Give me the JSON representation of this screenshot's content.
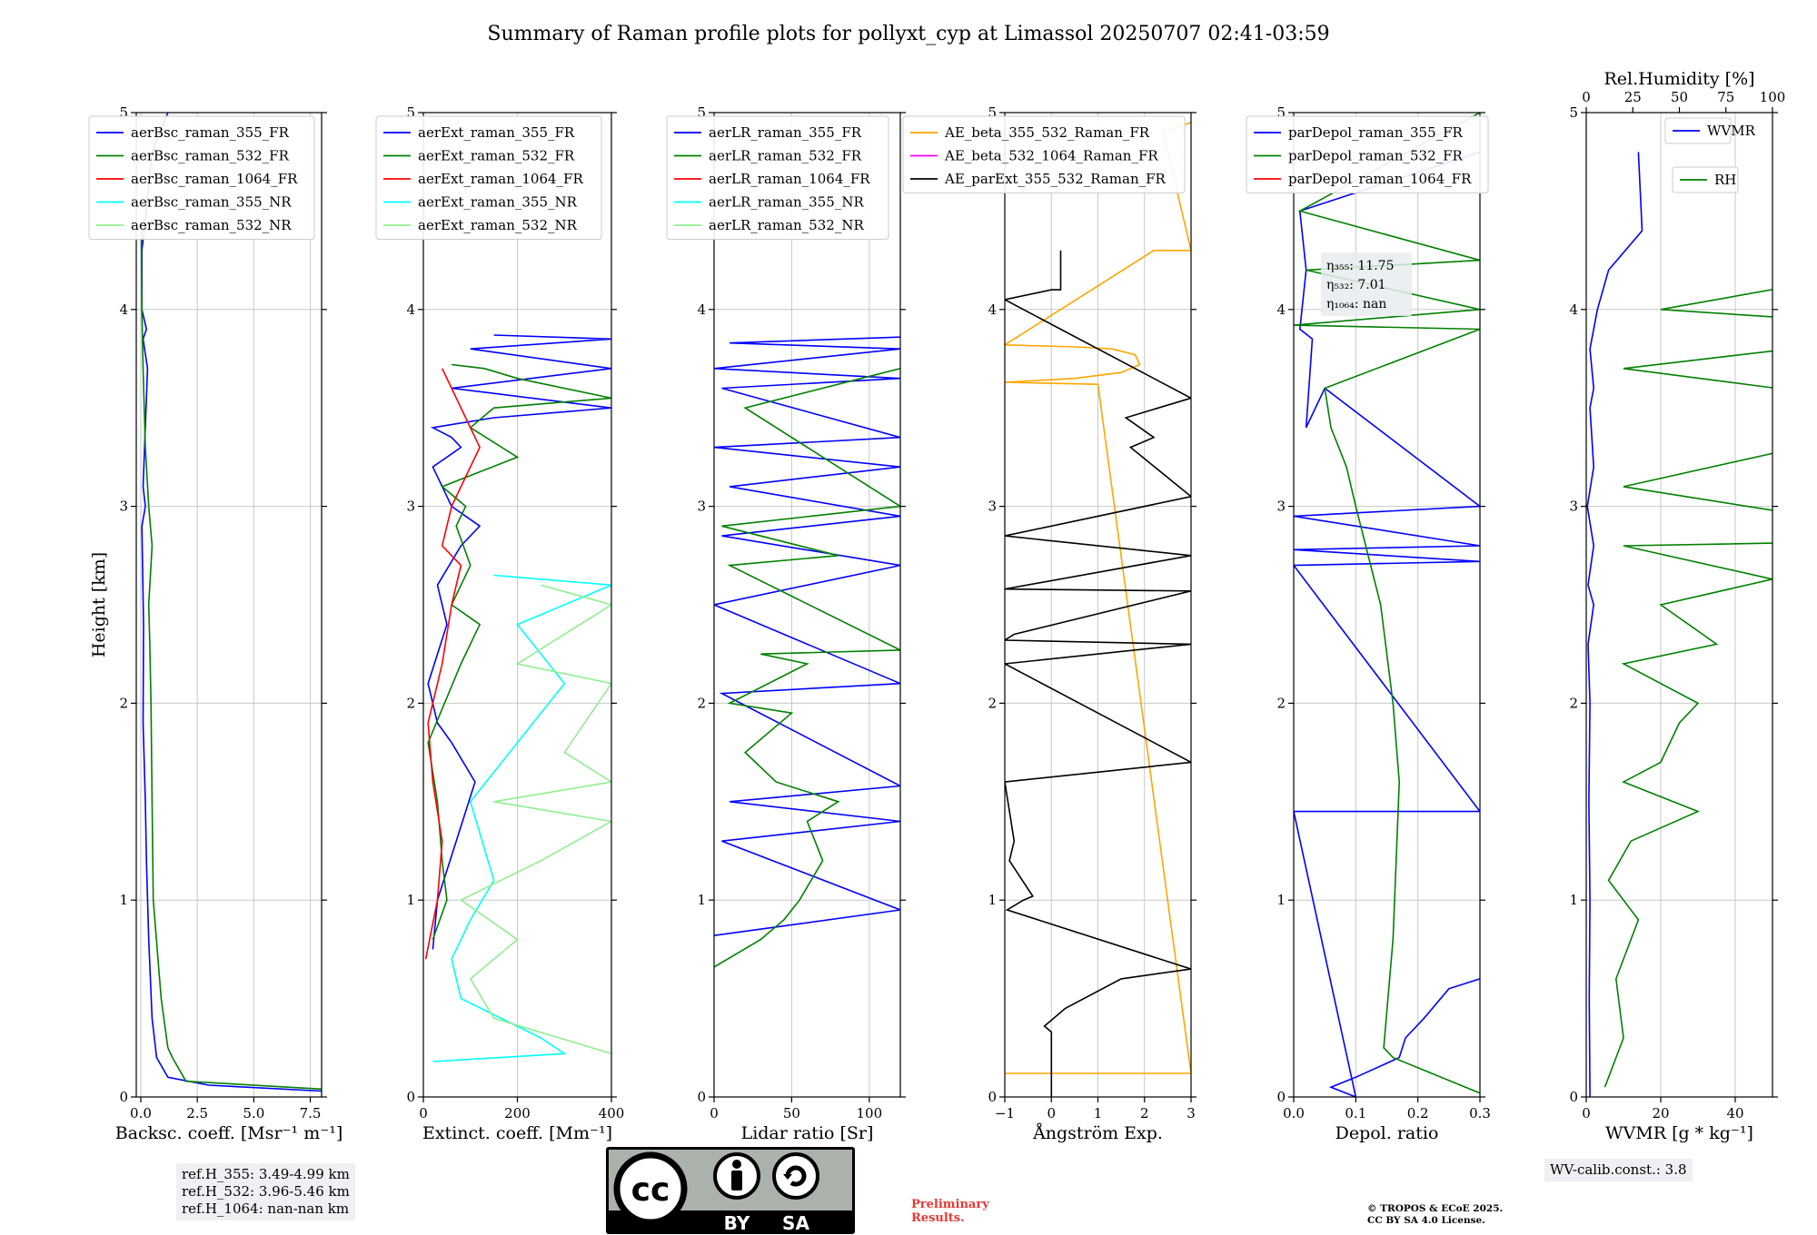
{
  "title": "Summary of Raman profile plots for pollyxt_cyp at Limassol 20250707 02:41-03:59",
  "chart_data": [
    {
      "type": "line",
      "xlabel": "Backsc. coeff. [Msr⁻¹ m⁻¹]",
      "ylabel": "Height [km]",
      "xlim": [
        -0.2,
        8
      ],
      "ylim": [
        0,
        5
      ],
      "xticks": [
        "0.0",
        "2.5",
        "5.0",
        "7.5"
      ],
      "xtick_values": [
        0,
        2.5,
        5,
        7.5
      ],
      "yticks": [
        "0",
        "1",
        "2",
        "3",
        "4",
        "5"
      ],
      "grid": true,
      "legend_position": "top-left",
      "series": [
        {
          "name": "aerBsc_raman_355_FR",
          "color": "#0000ff",
          "x": [
            8,
            3,
            1.2,
            0.7,
            0.5,
            0.35,
            0.25,
            0.2,
            0.1,
            0.12,
            0.05,
            0.2,
            0.1,
            0.3,
            0.1,
            0.25,
            0.05,
            0.05,
            0.15,
            0.5,
            1.2
          ],
          "y": [
            0.03,
            0.06,
            0.1,
            0.2,
            0.4,
            0.8,
            1.2,
            1.5,
            1.9,
            2.4,
            2.9,
            3.0,
            3.1,
            3.7,
            3.85,
            3.9,
            4.0,
            4.3,
            4.4,
            4.8,
            5.0
          ]
        },
        {
          "name": "aerBsc_raman_532_FR",
          "color": "#008000",
          "x": [
            8,
            2,
            1.4,
            1.2,
            0.9,
            0.55,
            0.5,
            0.45,
            0.4,
            0.35,
            0.5,
            0.35,
            0.2,
            0.1,
            0.05,
            0.02
          ],
          "y": [
            0.04,
            0.08,
            0.2,
            0.25,
            0.5,
            1.0,
            1.5,
            2.0,
            2.3,
            2.5,
            2.8,
            3.0,
            3.3,
            3.7,
            4.0,
            4.4
          ]
        },
        {
          "name": "aerBsc_raman_1064_FR",
          "color": "#ff0000",
          "x": [],
          "y": []
        },
        {
          "name": "aerBsc_raman_355_NR",
          "color": "#00ffff",
          "x": [],
          "y": []
        },
        {
          "name": "aerBsc_raman_532_NR",
          "color": "#90ee90",
          "x": [],
          "y": []
        }
      ]
    },
    {
      "type": "line",
      "xlabel": "Extinct. coeff. [Mm⁻¹]",
      "xlim": [
        0,
        400
      ],
      "ylim": [
        0,
        5
      ],
      "xticks": [
        "0",
        "200",
        "400"
      ],
      "xtick_values": [
        0,
        200,
        400
      ],
      "yticks": [
        "0",
        "1",
        "2",
        "3",
        "4",
        "5"
      ],
      "grid": true,
      "legend_position": "top-left",
      "series": [
        {
          "name": "aerExt_raman_355_FR",
          "color": "#0000ff",
          "x": [
            20,
            30,
            70,
            110,
            60,
            30,
            10,
            50,
            30,
            80,
            120,
            60,
            20,
            80,
            60,
            20,
            150,
            400,
            60,
            400,
            100,
            400,
            150
          ],
          "y": [
            0.75,
            1.0,
            1.3,
            1.6,
            1.8,
            1.9,
            2.1,
            2.4,
            2.6,
            2.8,
            2.9,
            3.0,
            3.2,
            3.3,
            3.35,
            3.4,
            3.45,
            3.5,
            3.6,
            3.7,
            3.8,
            3.85,
            3.87
          ]
        },
        {
          "name": "aerExt_raman_532_FR",
          "color": "#008000",
          "x": [
            20,
            50,
            40,
            30,
            10,
            80,
            120,
            60,
            100,
            70,
            90,
            40,
            200,
            100,
            150,
            400,
            200,
            130,
            60
          ],
          "y": [
            0.8,
            1.0,
            1.2,
            1.5,
            1.8,
            2.2,
            2.4,
            2.5,
            2.7,
            2.9,
            3.0,
            3.1,
            3.25,
            3.4,
            3.5,
            3.55,
            3.65,
            3.7,
            3.72
          ]
        },
        {
          "name": "aerExt_raman_1064_FR",
          "color": "#ff0000",
          "x": [
            5,
            30,
            40,
            20,
            10,
            40,
            60,
            80,
            40,
            60,
            80,
            120,
            80,
            60,
            40
          ],
          "y": [
            0.7,
            1.0,
            1.3,
            1.6,
            1.9,
            2.2,
            2.5,
            2.7,
            2.8,
            3.0,
            3.1,
            3.3,
            3.5,
            3.6,
            3.7
          ]
        },
        {
          "name": "aerExt_raman_355_NR",
          "color": "#00ffff",
          "x": [
            20,
            300,
            250,
            80,
            60,
            100,
            150,
            100,
            300,
            200,
            400,
            150
          ],
          "y": [
            0.18,
            0.22,
            0.3,
            0.5,
            0.7,
            0.9,
            1.1,
            1.5,
            2.1,
            2.4,
            2.6,
            2.65
          ]
        },
        {
          "name": "aerExt_raman_532_NR",
          "color": "#90ee90",
          "x": [
            400,
            150,
            100,
            200,
            80,
            250,
            400,
            150,
            400,
            300,
            400,
            200,
            400,
            250
          ],
          "y": [
            0.22,
            0.4,
            0.6,
            0.8,
            1.0,
            1.2,
            1.4,
            1.5,
            1.6,
            1.75,
            2.1,
            2.2,
            2.5,
            2.6
          ]
        }
      ]
    },
    {
      "type": "line",
      "xlabel": "Lidar ratio [Sr]",
      "xlim": [
        0,
        120
      ],
      "ylim": [
        0,
        5
      ],
      "xticks": [
        "0",
        "50",
        "100"
      ],
      "xtick_values": [
        0,
        50,
        100
      ],
      "yticks": [
        "0",
        "1",
        "2",
        "3",
        "4",
        "5"
      ],
      "grid": true,
      "legend_position": "top-left",
      "series": [
        {
          "name": "aerLR_raman_355_FR",
          "color": "#0000ff",
          "x": [
            0,
            120,
            5,
            120,
            10,
            120,
            5,
            120,
            0,
            120,
            5,
            120,
            10,
            120,
            0,
            120,
            5,
            120,
            0,
            120,
            10,
            120
          ],
          "y": [
            0.82,
            0.95,
            1.3,
            1.4,
            1.5,
            1.58,
            2.05,
            2.1,
            2.5,
            2.7,
            2.85,
            2.95,
            3.1,
            3.2,
            3.3,
            3.35,
            3.6,
            3.65,
            3.7,
            3.8,
            3.83,
            3.86
          ]
        },
        {
          "name": "aerLR_raman_532_FR",
          "color": "#008000",
          "x": [
            0,
            30,
            45,
            55,
            70,
            60,
            80,
            40,
            20,
            50,
            10,
            60,
            30,
            120,
            10,
            80,
            5,
            120,
            20,
            120
          ],
          "y": [
            0.66,
            0.8,
            0.9,
            1.0,
            1.2,
            1.4,
            1.5,
            1.6,
            1.75,
            1.95,
            2.0,
            2.2,
            2.25,
            2.27,
            2.7,
            2.75,
            2.9,
            3.0,
            3.5,
            3.7
          ]
        },
        {
          "name": "aerLR_raman_1064_FR",
          "color": "#ff0000",
          "x": [],
          "y": []
        },
        {
          "name": "aerLR_raman_355_NR",
          "color": "#00ffff",
          "x": [],
          "y": []
        },
        {
          "name": "aerLR_raman_532_NR",
          "color": "#90ee90",
          "x": [],
          "y": []
        }
      ]
    },
    {
      "type": "line",
      "xlabel": "Ångström Exp.",
      "xlim": [
        -1,
        3
      ],
      "ylim": [
        0,
        5
      ],
      "xticks": [
        "−1",
        "0",
        "1",
        "2",
        "3"
      ],
      "xtick_values": [
        -1,
        0,
        1,
        2,
        3
      ],
      "yticks": [
        "0",
        "1",
        "2",
        "3",
        "4",
        "5"
      ],
      "grid": true,
      "legend_position": "top",
      "series": [
        {
          "name": "AE_beta_355_532_Raman_FR",
          "color": "#ffa500",
          "x": [
            -1,
            3,
            1,
            -1,
            0.5,
            1.5,
            1.9,
            1.8,
            1.3,
            0.5,
            -1,
            2.2,
            3,
            2.4,
            3
          ],
          "y": [
            0.12,
            0.12,
            3.62,
            3.63,
            3.65,
            3.68,
            3.72,
            3.77,
            3.8,
            3.81,
            3.82,
            4.3,
            4.3,
            4.9,
            4.95
          ]
        },
        {
          "name": "AE_beta_532_1064_Raman_FR",
          "color": "#ff00ff",
          "x": [],
          "y": []
        },
        {
          "name": "AE_parExt_355_532_Raman_FR",
          "color": "#000000",
          "x": [
            0,
            0,
            -0.15,
            0.3,
            1.5,
            3,
            -0.95,
            -0.6,
            -0.4,
            -0.9,
            -0.8,
            -1,
            3,
            -1,
            3,
            -1,
            -0.8,
            3,
            -1,
            3,
            -1,
            3,
            1.7,
            2.2,
            1.6,
            2.3,
            3,
            -1,
            0,
            0.2,
            0.2
          ],
          "y": [
            0,
            0.33,
            0.36,
            0.45,
            0.6,
            0.65,
            0.95,
            1.0,
            1.02,
            1.2,
            1.3,
            1.6,
            1.7,
            2.2,
            2.3,
            2.32,
            2.35,
            2.57,
            2.58,
            2.75,
            2.85,
            3.05,
            3.3,
            3.35,
            3.45,
            3.5,
            3.55,
            4.05,
            4.1,
            4.1,
            4.3
          ]
        }
      ]
    },
    {
      "type": "line",
      "xlabel": "Depol. ratio",
      "xlim": [
        0,
        0.3
      ],
      "ylim": [
        0,
        5
      ],
      "xticks": [
        "0.0",
        "0.1",
        "0.2",
        "0.3"
      ],
      "xtick_values": [
        0,
        0.1,
        0.2,
        0.3
      ],
      "yticks": [
        "0",
        "1",
        "2",
        "3",
        "4",
        "5"
      ],
      "grid": true,
      "legend_position": "top-left",
      "series": [
        {
          "name": "parDepol_raman_355_FR",
          "color": "#0000ff",
          "x": [
            0.3,
            0.25,
            0.21,
            0.18,
            0.17,
            0.1,
            0.06,
            0.1,
            0.0,
            0.3,
            0.0,
            0.3,
            0.0,
            0.3,
            0.0,
            0.3,
            0.05,
            0.02,
            0.03,
            0.01,
            0.02,
            0.01,
            0.3
          ],
          "y": [
            0.6,
            0.55,
            0.4,
            0.3,
            0.2,
            0.1,
            0.05,
            0.0,
            1.45,
            1.45,
            2.7,
            2.72,
            2.78,
            2.8,
            2.95,
            3.0,
            3.6,
            3.4,
            3.85,
            3.9,
            4.2,
            4.5,
            4.8
          ]
        },
        {
          "name": "parDepol_raman_532_FR",
          "color": "#008000",
          "x": [
            0.3,
            0.16,
            0.145,
            0.16,
            0.165,
            0.17,
            0.16,
            0.14,
            0.1,
            0.085,
            0.06,
            0.05,
            0.3,
            0.0,
            0.3,
            0.02,
            0.3,
            0.01,
            0.3
          ],
          "y": [
            0.02,
            0.2,
            0.25,
            0.8,
            1.2,
            1.6,
            2.0,
            2.5,
            3.0,
            3.2,
            3.4,
            3.6,
            3.9,
            3.92,
            4.0,
            4.2,
            4.25,
            4.5,
            5.0
          ]
        },
        {
          "name": "parDepol_raman_1064_FR",
          "color": "#ff0000",
          "x": [],
          "y": []
        }
      ],
      "annotation": [
        "η₃₅₅: 11.75",
        "η₅₃₂: 7.01",
        "η₁₀₆₄: nan"
      ]
    },
    {
      "type": "line",
      "xlabel": "WVMR [g * kg⁻¹]",
      "xlim": [
        0,
        50
      ],
      "ylim": [
        0,
        5
      ],
      "xticks": [
        "0",
        "20",
        "40"
      ],
      "xtick_values": [
        0,
        20,
        40
      ],
      "yticks": [
        "0",
        "1",
        "2",
        "3",
        "4",
        "5"
      ],
      "top_xlabel": "Rel.Humidity [%]",
      "top_xlim": [
        0,
        100
      ],
      "top_xticks": [
        "0",
        "25",
        "50",
        "75",
        "100"
      ],
      "top_xtick_values": [
        0,
        25,
        50,
        75,
        100
      ],
      "grid": true,
      "legend_position": "top-right",
      "series": [
        {
          "name": "WVMR",
          "color": "#0000ff",
          "x": [
            1,
            0.8,
            1,
            0.7,
            1,
            0.5,
            2,
            0.5,
            2,
            0.3,
            2,
            1,
            2,
            1,
            3,
            6,
            15,
            14
          ],
          "y": [
            0,
            0.5,
            1.0,
            1.5,
            2.0,
            2.3,
            2.5,
            2.6,
            2.8,
            3.0,
            3.2,
            3.5,
            3.6,
            3.8,
            4.0,
            4.2,
            4.4,
            4.8
          ]
        },
        {
          "name": "RH",
          "color": "#008000",
          "x": [
            5,
            10,
            8,
            14,
            6,
            12,
            30,
            10,
            20,
            25,
            30,
            10,
            35,
            20,
            50,
            10,
            100,
            10,
            100,
            10,
            100,
            20,
            100
          ],
          "y": [
            0.05,
            0.3,
            0.6,
            0.9,
            1.1,
            1.3,
            1.45,
            1.6,
            1.7,
            1.9,
            2.0,
            2.2,
            2.3,
            2.5,
            2.63,
            2.8,
            2.83,
            3.1,
            3.48,
            3.7,
            3.9,
            4.0,
            4.27
          ]
        }
      ],
      "annotation": [
        "WV-calib.const.: 3.8"
      ]
    }
  ],
  "notes": {
    "ref_h": "ref.H_355: 3.49-4.99 km\nref.H_532: 3.96-5.46 km\nref.H_1064: nan-nan km",
    "wv_calib": "WV-calib.const.: 3.8",
    "license_by": "BY",
    "license_sa": "SA",
    "license_cc": "cc",
    "preliminary": "Preliminary\nResults.",
    "copyright": "© TROPOS & ECoE 2025.\nCC BY SA 4.0 License."
  }
}
